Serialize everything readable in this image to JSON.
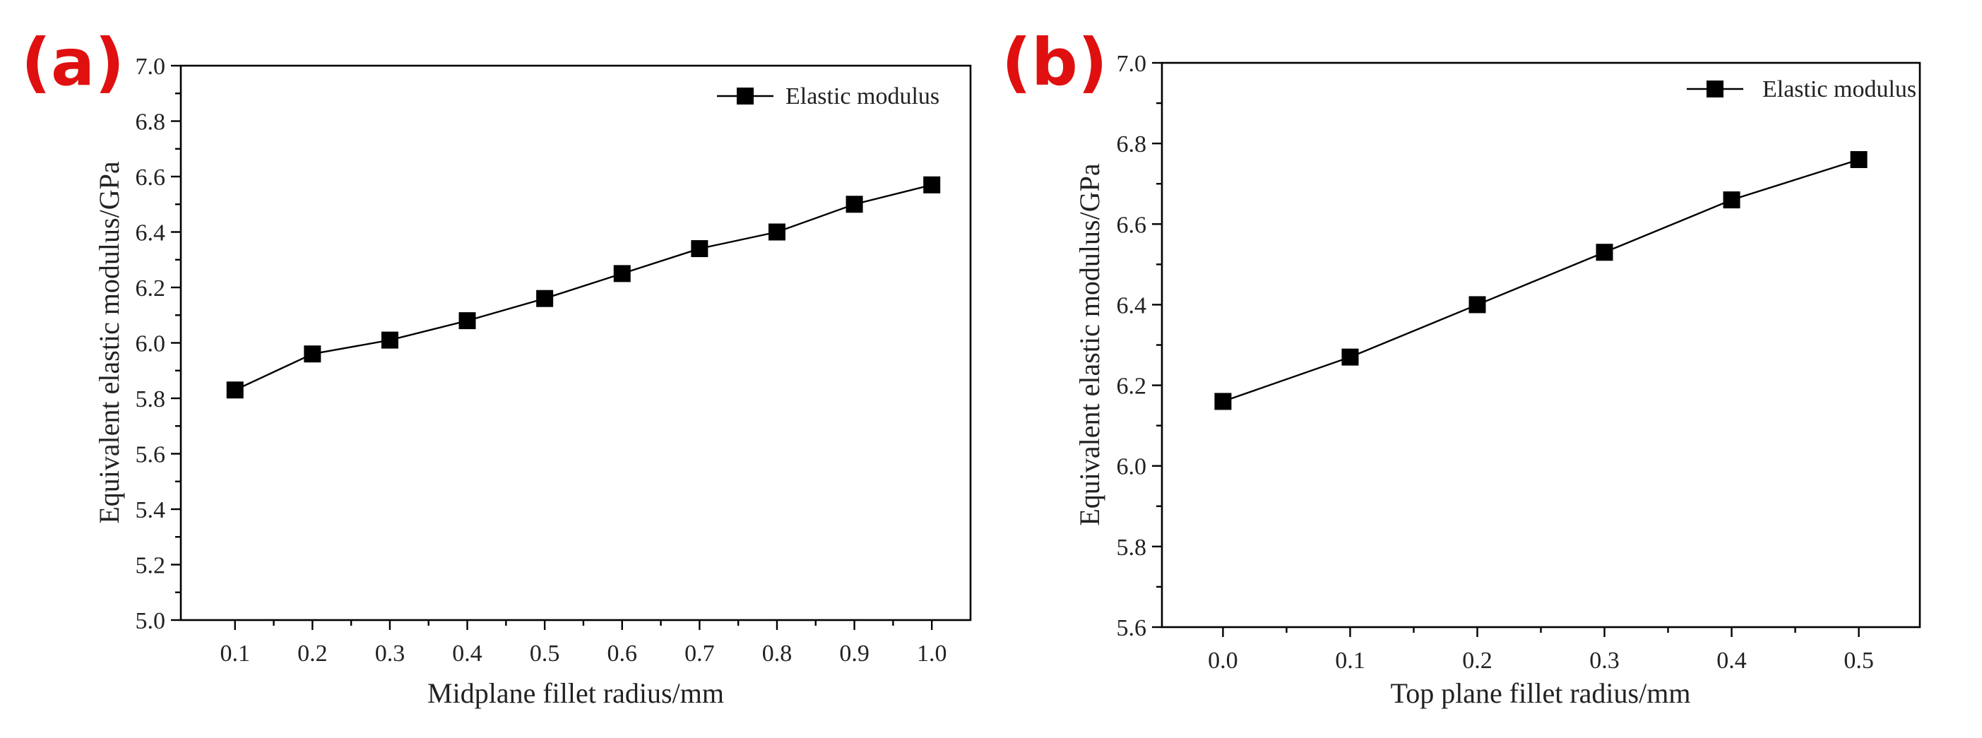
{
  "chart_data": [
    {
      "type": "line",
      "panel_label": "(a)",
      "x": [
        0.1,
        0.2,
        0.3,
        0.4,
        0.5,
        0.6,
        0.7,
        0.8,
        0.9,
        1.0
      ],
      "x_tick_labels": [
        "0.1",
        "0.2",
        "0.3",
        "0.4",
        "0.5",
        "0.6",
        "0.7",
        "0.8",
        "0.9",
        "1.0"
      ],
      "series": [
        {
          "name": "Elastic modulus",
          "values": [
            5.83,
            5.96,
            6.01,
            6.08,
            6.16,
            6.25,
            6.34,
            6.4,
            6.5,
            6.57
          ]
        }
      ],
      "xlabel": "Midplane fillet radius/mm",
      "ylabel": "Equivalent elastic modulus/GPa",
      "xlim": [
        0.03,
        1.05
      ],
      "ylim": [
        5.0,
        7.0
      ],
      "y_ticks": [
        5.0,
        5.2,
        5.4,
        5.6,
        5.8,
        6.0,
        6.2,
        6.4,
        6.6,
        6.8,
        7.0
      ],
      "y_tick_labels": [
        "5.0",
        "5.2",
        "5.4",
        "5.6",
        "5.8",
        "6.0",
        "6.2",
        "6.4",
        "6.6",
        "6.8",
        "7.0"
      ],
      "grid": false,
      "legend_position": "top-right"
    },
    {
      "type": "line",
      "panel_label": "(b)",
      "x": [
        0.0,
        0.1,
        0.2,
        0.3,
        0.4,
        0.5
      ],
      "x_tick_labels": [
        "0.0",
        "0.1",
        "0.2",
        "0.3",
        "0.4",
        "0.5"
      ],
      "series": [
        {
          "name": "Elastic modulus",
          "values": [
            6.16,
            6.27,
            6.4,
            6.53,
            6.66,
            6.76
          ]
        }
      ],
      "xlabel": "Top plane fillet radius/mm",
      "ylabel": "Equivalent elastic modulus/GPa",
      "xlim": [
        -0.048,
        0.548
      ],
      "ylim": [
        5.6,
        7.0
      ],
      "y_ticks": [
        5.6,
        5.8,
        6.0,
        6.2,
        6.4,
        6.6,
        6.8,
        7.0
      ],
      "y_tick_labels": [
        "5.6",
        "5.8",
        "6.0",
        "6.2",
        "6.4",
        "6.6",
        "6.8",
        "7.0"
      ],
      "grid": false,
      "legend_position": "top-right"
    }
  ]
}
